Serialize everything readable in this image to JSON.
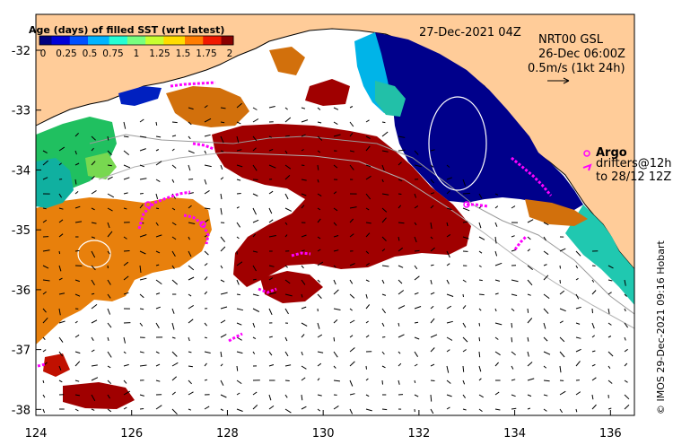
{
  "map": {
    "date_label": "27-Dec-2021 04Z",
    "product_line1": "NRT00 GSL",
    "product_line2": "26-Dec 06:00Z",
    "scale_label": "0.5m/s (1kt 24h)",
    "argo_label": "Argo",
    "drifters_line1": "drifters@12h",
    "drifters_line2": "to 28/12 12Z",
    "copyright": "© IMOS 29-Dec-2021 09:16 Hobart",
    "colorbar_title": "Age (days) of filled SST (wrt latest)",
    "colorbar_ticks": [
      "0",
      "0.25",
      "0.5",
      "0.75",
      "1",
      "1.25",
      "1.5",
      "1.75",
      "2"
    ],
    "colorbar_colors": [
      "#00007f",
      "#0000d8",
      "#0050ff",
      "#00b4ff",
      "#24ffd4",
      "#78ff7f",
      "#c8ff30",
      "#ffdc00",
      "#ff7c00",
      "#f01800",
      "#8b0000"
    ],
    "x_ticks": [
      "124",
      "126",
      "128",
      "130",
      "132",
      "134",
      "136"
    ],
    "y_ticks": [
      "-32",
      "-33",
      "-34",
      "-35",
      "-36",
      "-37",
      "-38"
    ],
    "x_range": [
      124,
      136.5
    ],
    "y_range": [
      -38.1,
      -31.4
    ],
    "land_color": "#ffcc99",
    "argo_color": "#ff00ff"
  }
}
